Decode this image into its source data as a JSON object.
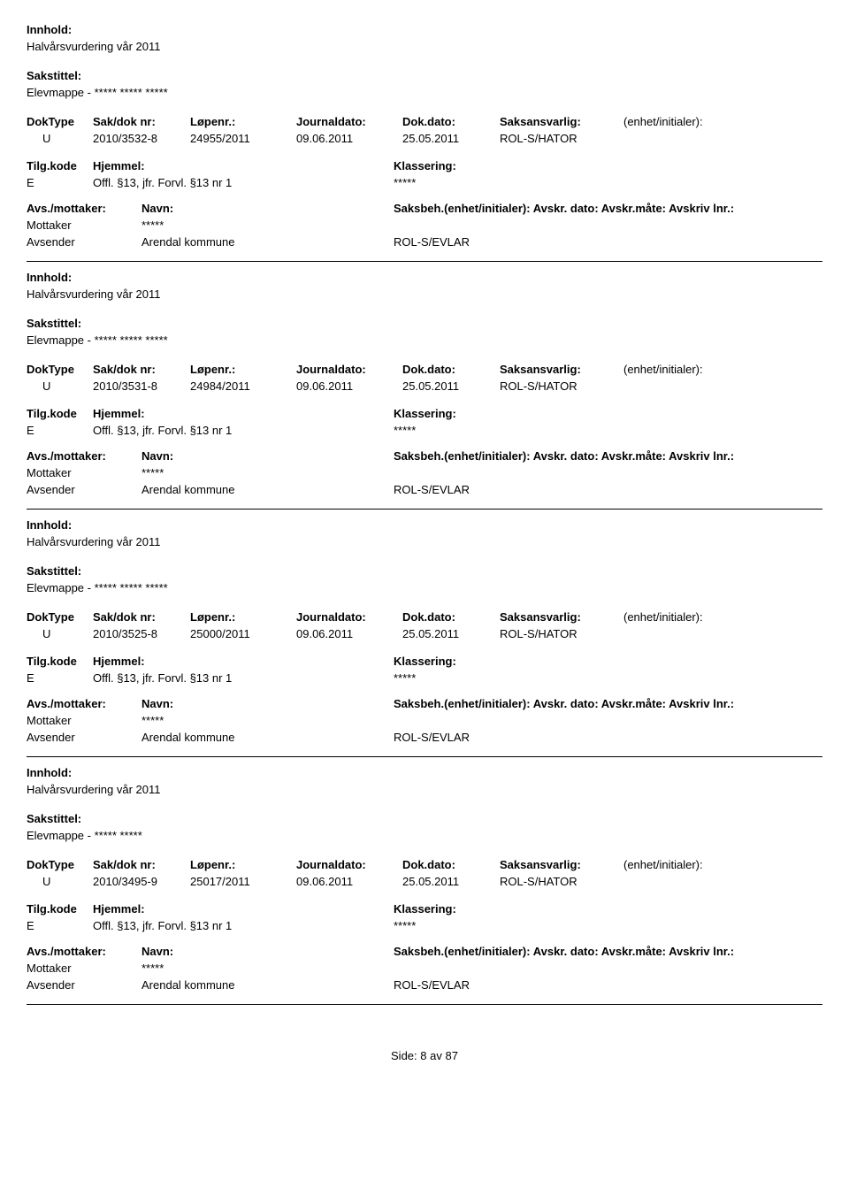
{
  "labels": {
    "innhold": "Innhold:",
    "sakstittel": "Sakstittel:",
    "doktype": "DokType",
    "sakdok": "Sak/dok nr:",
    "lopenr": "Løpenr.:",
    "journaldato": "Journaldato:",
    "dokdato": "Dok.dato:",
    "saksansvarlig": "Saksansvarlig:",
    "enhet": "(enhet/initialer):",
    "tilgkode": "Tilg.kode",
    "hjemmel": "Hjemmel:",
    "klassering": "Klassering:",
    "avsmottaker": "Avs./mottaker:",
    "navn": "Navn:",
    "saksbeh": "Saksbeh.(enhet/initialer): Avskr. dato:  Avskr.måte: Avskriv lnr.:",
    "mottaker": "Mottaker",
    "avsender": "Avsender"
  },
  "records": [
    {
      "innhold": "Halvårsvurdering vår 2011",
      "sakstittel": "Elevmappe - ***** ***** *****",
      "doktype": "U",
      "sakdok": "2010/3532-8",
      "lopenr": "24955/2011",
      "journaldato": "09.06.2011",
      "dokdato": "25.05.2011",
      "saksansvarlig": "ROL-S/HATOR",
      "tilgkode": "E",
      "hjemmel": "Offl. §13, jfr. Forvl. §13 nr 1",
      "klassering": "*****",
      "mottaker_navn": "*****",
      "avsender_navn": "Arendal kommune",
      "avsender_kode": "ROL-S/EVLAR"
    },
    {
      "innhold": "Halvårsvurdering vår 2011",
      "sakstittel": "Elevmappe - ***** ***** *****",
      "doktype": "U",
      "sakdok": "2010/3531-8",
      "lopenr": "24984/2011",
      "journaldato": "09.06.2011",
      "dokdato": "25.05.2011",
      "saksansvarlig": "ROL-S/HATOR",
      "tilgkode": "E",
      "hjemmel": "Offl. §13, jfr. Forvl. §13 nr 1",
      "klassering": "*****",
      "mottaker_navn": "*****",
      "avsender_navn": "Arendal kommune",
      "avsender_kode": "ROL-S/EVLAR"
    },
    {
      "innhold": "Halvårsvurdering vår 2011",
      "sakstittel": "Elevmappe - ***** ***** *****",
      "doktype": "U",
      "sakdok": "2010/3525-8",
      "lopenr": "25000/2011",
      "journaldato": "09.06.2011",
      "dokdato": "25.05.2011",
      "saksansvarlig": "ROL-S/HATOR",
      "tilgkode": "E",
      "hjemmel": "Offl. §13, jfr. Forvl. §13 nr 1",
      "klassering": "*****",
      "mottaker_navn": "*****",
      "avsender_navn": "Arendal kommune",
      "avsender_kode": "ROL-S/EVLAR"
    },
    {
      "innhold": "Halvårsvurdering vår 2011",
      "sakstittel": "Elevmappe - ***** *****",
      "doktype": "U",
      "sakdok": "2010/3495-9",
      "lopenr": "25017/2011",
      "journaldato": "09.06.2011",
      "dokdato": "25.05.2011",
      "saksansvarlig": "ROL-S/HATOR",
      "tilgkode": "E",
      "hjemmel": "Offl. §13, jfr. Forvl. §13 nr 1",
      "klassering": "*****",
      "mottaker_navn": "*****",
      "avsender_navn": "Arendal kommune",
      "avsender_kode": "ROL-S/EVLAR"
    }
  ],
  "footer": {
    "side": "Side:",
    "page": "8",
    "av": "av",
    "total": "87"
  }
}
